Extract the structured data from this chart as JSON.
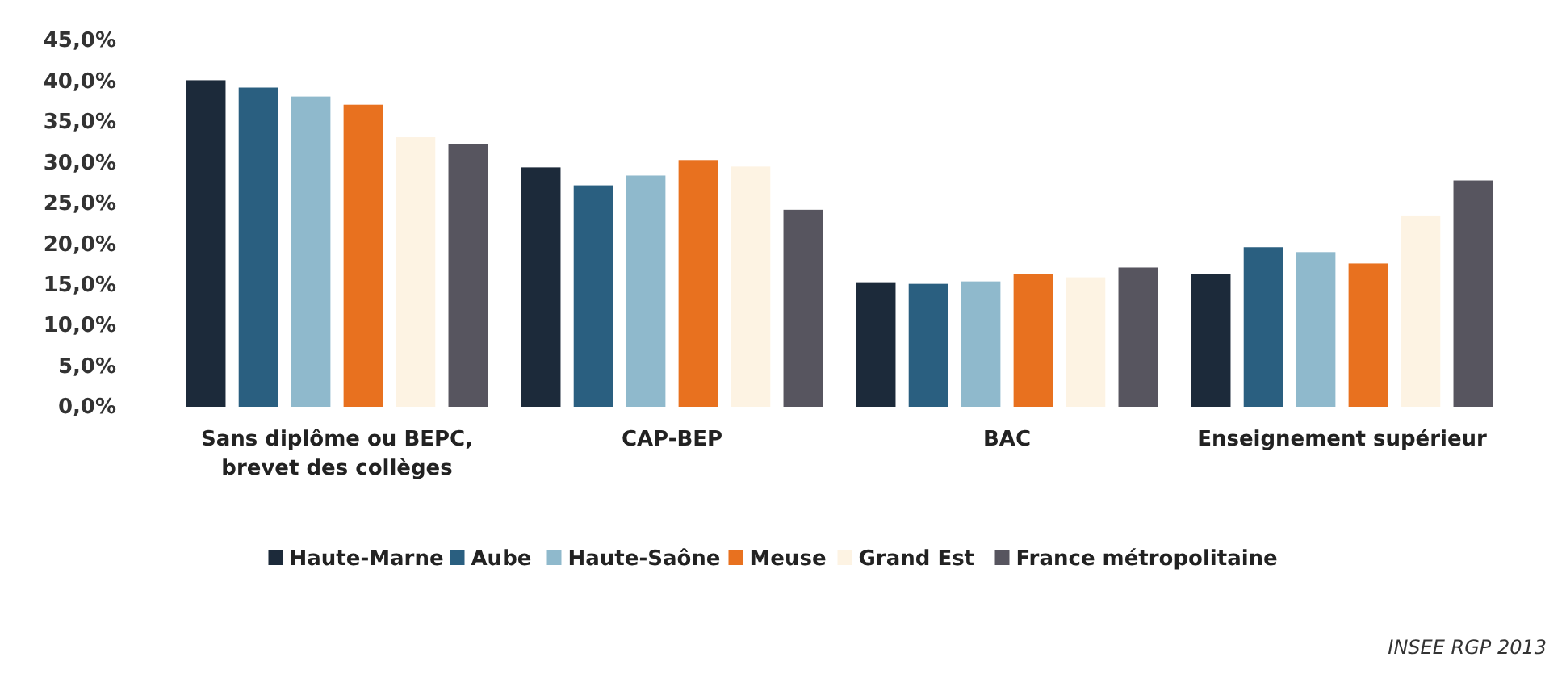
{
  "chart_data": {
    "type": "bar",
    "categories": [
      "Sans diplôme ou BEPC, brevet des collèges",
      "CAP-BEP",
      "BAC",
      "Enseignement supérieur"
    ],
    "series": [
      {
        "name": "Haute-Marne",
        "color": "#1c2a3a",
        "values": [
          40.1,
          29.4,
          15.3,
          16.3
        ]
      },
      {
        "name": "Aube",
        "color": "#2a5f80",
        "values": [
          39.2,
          27.2,
          15.1,
          19.6
        ]
      },
      {
        "name": "Haute-Saône",
        "color": "#8fb9cc",
        "values": [
          38.1,
          28.4,
          15.4,
          19.0
        ]
      },
      {
        "name": "Meuse",
        "color": "#e8711f",
        "values": [
          37.1,
          30.3,
          16.3,
          17.6
        ]
      },
      {
        "name": "Grand Est",
        "color": "#fdf3e3",
        "values": [
          33.1,
          29.5,
          15.9,
          23.5
        ]
      },
      {
        "name": "France métropolitaine",
        "color": "#57555f",
        "values": [
          32.3,
          24.2,
          17.1,
          27.8
        ]
      }
    ],
    "ylim": [
      0,
      45
    ],
    "yticks": [
      {
        "value": 0,
        "label": "0,0%"
      },
      {
        "value": 5,
        "label": "5,0%"
      },
      {
        "value": 10,
        "label": "10,0%"
      },
      {
        "value": 15,
        "label": "15,0%"
      },
      {
        "value": 20,
        "label": "20,0%"
      },
      {
        "value": 25,
        "label": "25,0%"
      },
      {
        "value": 30,
        "label": "30,0%"
      },
      {
        "value": 35,
        "label": "35,0%"
      },
      {
        "value": 40,
        "label": "40,0%"
      },
      {
        "value": 45,
        "label": "45,0%"
      }
    ],
    "grid": false,
    "legend": "bottom",
    "annotations": [
      "INSEE RGP 2013"
    ]
  }
}
